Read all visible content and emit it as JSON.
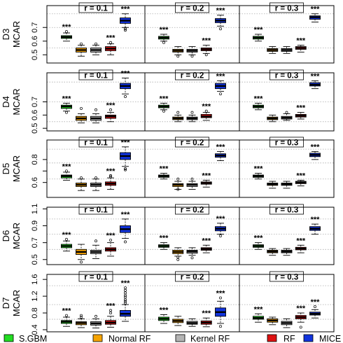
{
  "chart_data": {
    "type": "boxplot",
    "panel_titles": [
      "r = 0.1",
      "r = 0.2",
      "r = 0.3"
    ],
    "methods": [
      "S.GBM",
      "Normal RF",
      "Kernel RF",
      "RF",
      "MICE"
    ],
    "colors": {
      "S.GBM": "#22dd22",
      "Normal RF": "#f5a300",
      "Kernel RF": "#b4b4b4",
      "RF": "#dd1111",
      "MICE": "#1133dd"
    },
    "significance_label": "***",
    "rows": [
      {
        "label_top": "D3",
        "label_bottom": "MCAR",
        "ylim": [
          0.44,
          0.86
        ],
        "ticks": [
          0.5,
          0.6,
          0.7
        ],
        "tick_labels": [
          "0.5",
          "0.6",
          "0.7"
        ],
        "grid": [
          0.55,
          0.7,
          0.8
        ],
        "panels": [
          {
            "boxes": [
              [
                0.6,
                0.62,
                0.63,
                0.64,
                0.66
              ],
              [
                0.49,
                0.52,
                0.535,
                0.55,
                0.57
              ],
              [
                0.5,
                0.52,
                0.535,
                0.55,
                0.57
              ],
              [
                0.5,
                0.53,
                0.545,
                0.56,
                0.58
              ],
              [
                0.7,
                0.73,
                0.75,
                0.77,
                0.8
              ]
            ],
            "outliers": [
              [
                0.67
              ],
              [
                0.58
              ],
              [
                0.58
              ],
              [
                0.59
              ],
              [
                0.68,
                0.69
              ]
            ]
          },
          {
            "boxes": [
              [
                0.6,
                0.615,
                0.625,
                0.635,
                0.65
              ],
              [
                0.5,
                0.52,
                0.53,
                0.54,
                0.56
              ],
              [
                0.5,
                0.52,
                0.53,
                0.54,
                0.56
              ],
              [
                0.51,
                0.53,
                0.54,
                0.55,
                0.57
              ],
              [
                0.71,
                0.735,
                0.75,
                0.765,
                0.79
              ]
            ],
            "outliers": [
              [
                0.59
              ],
              [
                0.49
              ],
              [
                0.49
              ],
              [
                0.5
              ],
              [
                0.69
              ]
            ]
          },
          {
            "boxes": [
              [
                0.6,
                0.615,
                0.625,
                0.635,
                0.65
              ],
              [
                0.51,
                0.525,
                0.535,
                0.545,
                0.56
              ],
              [
                0.51,
                0.525,
                0.535,
                0.545,
                0.56
              ],
              [
                0.52,
                0.54,
                0.55,
                0.56,
                0.57
              ],
              [
                0.74,
                0.76,
                0.775,
                0.785,
                0.8
              ]
            ],
            "outliers": [
              [],
              [],
              [],
              [],
              []
            ]
          }
        ]
      },
      {
        "label_top": "D4",
        "label_bottom": "MCAR",
        "ylim": [
          0.48,
          0.92
        ],
        "ticks": [
          0.5,
          0.6,
          0.7
        ],
        "tick_labels": [
          "0.5",
          "0.6",
          "0.7"
        ],
        "grid": [
          0.55,
          0.7,
          0.85
        ],
        "panels": [
          {
            "boxes": [
              [
                0.63,
                0.65,
                0.665,
                0.675,
                0.69
              ],
              [
                0.54,
                0.56,
                0.575,
                0.59,
                0.61
              ],
              [
                0.54,
                0.56,
                0.575,
                0.59,
                0.61
              ],
              [
                0.55,
                0.575,
                0.59,
                0.6,
                0.62
              ],
              [
                0.76,
                0.8,
                0.82,
                0.84,
                0.88
              ]
            ],
            "outliers": [
              [
                0.62
              ],
              [
                0.65
              ],
              [
                0.64
              ],
              [
                0.64
              ],
              [
                0.74
              ]
            ]
          },
          {
            "boxes": [
              [
                0.64,
                0.655,
                0.665,
                0.675,
                0.69
              ],
              [
                0.55,
                0.565,
                0.575,
                0.585,
                0.6
              ],
              [
                0.55,
                0.565,
                0.575,
                0.585,
                0.6
              ],
              [
                0.56,
                0.58,
                0.59,
                0.605,
                0.62
              ],
              [
                0.78,
                0.8,
                0.82,
                0.84,
                0.86
              ]
            ],
            "outliers": [
              [
                0.63
              ],
              [
                0.62
              ],
              [
                0.62
              ],
              [
                0.63
              ],
              [
                0.76
              ]
            ]
          },
          {
            "boxes": [
              [
                0.64,
                0.655,
                0.665,
                0.675,
                0.69
              ],
              [
                0.55,
                0.565,
                0.575,
                0.585,
                0.6
              ],
              [
                0.56,
                0.57,
                0.58,
                0.59,
                0.61
              ],
              [
                0.57,
                0.585,
                0.595,
                0.605,
                0.62
              ],
              [
                0.8,
                0.82,
                0.83,
                0.845,
                0.86
              ]
            ],
            "outliers": [
              [],
              [],
              [
                0.62
              ],
              [],
              []
            ]
          }
        ]
      },
      {
        "label_top": "D5",
        "label_bottom": "MCAR",
        "ylim": [
          0.47,
          0.97
        ],
        "ticks": [
          0.6,
          0.7,
          0.8
        ],
        "tick_labels": [
          "0.6",
          "",
          "0.8"
        ],
        "grid": [
          0.63,
          0.77,
          0.89
        ],
        "panels": [
          {
            "boxes": [
              [
                0.62,
                0.64,
                0.655,
                0.665,
                0.69
              ],
              [
                0.53,
                0.565,
                0.58,
                0.595,
                0.63
              ],
              [
                0.53,
                0.565,
                0.58,
                0.595,
                0.63
              ],
              [
                0.54,
                0.575,
                0.59,
                0.605,
                0.64
              ],
              [
                0.74,
                0.8,
                0.83,
                0.86,
                0.91
              ]
            ],
            "outliers": [
              [
                0.7
              ],
              [
                0.64
              ],
              [
                0.64
              ],
              [
                0.65,
                0.66
              ],
              [
                0.71,
                0.72
              ]
            ]
          },
          {
            "boxes": [
              [
                0.63,
                0.645,
                0.655,
                0.665,
                0.68
              ],
              [
                0.54,
                0.565,
                0.58,
                0.59,
                0.61
              ],
              [
                0.54,
                0.565,
                0.58,
                0.59,
                0.61
              ],
              [
                0.56,
                0.585,
                0.595,
                0.605,
                0.62
              ],
              [
                0.79,
                0.82,
                0.835,
                0.85,
                0.87
              ]
            ],
            "outliers": [
              [],
              [
                0.63,
                0.54
              ],
              [
                0.63
              ],
              [],
              []
            ]
          },
          {
            "boxes": [
              [
                0.63,
                0.645,
                0.655,
                0.665,
                0.68
              ],
              [
                0.55,
                0.575,
                0.585,
                0.595,
                0.61
              ],
              [
                0.55,
                0.575,
                0.585,
                0.595,
                0.61
              ],
              [
                0.57,
                0.59,
                0.6,
                0.61,
                0.62
              ],
              [
                0.8,
                0.825,
                0.84,
                0.855,
                0.87
              ]
            ],
            "outliers": [
              [],
              [],
              [],
              [],
              []
            ]
          }
        ]
      },
      {
        "label_top": "D6",
        "label_bottom": "MCAR",
        "ylim": [
          0.44,
          1.12
        ],
        "ticks": [
          0.5,
          0.7,
          0.9,
          1.1
        ],
        "tick_labels": [
          "0.5",
          "0.7",
          "0.9",
          "1.1"
        ],
        "grid": [
          0.62,
          0.8,
          0.98
        ],
        "panels": [
          {
            "boxes": [
              [
                0.6,
                0.64,
                0.66,
                0.68,
                0.72
              ],
              [
                0.5,
                0.56,
                0.59,
                0.62,
                0.68
              ],
              [
                0.51,
                0.57,
                0.59,
                0.61,
                0.67
              ],
              [
                0.54,
                0.6,
                0.62,
                0.64,
                0.7
              ],
              [
                0.75,
                0.82,
                0.86,
                0.9,
                0.98
              ]
            ],
            "outliers": [
              [
                0.74
              ],
              [
                0.47
              ],
              [
                0.72
              ],
              [
                0.73
              ],
              [
                0.71
              ]
            ]
          },
          {
            "boxes": [
              [
                0.62,
                0.645,
                0.66,
                0.675,
                0.7
              ],
              [
                0.54,
                0.57,
                0.59,
                0.61,
                0.64
              ],
              [
                0.55,
                0.575,
                0.595,
                0.61,
                0.64
              ],
              [
                0.58,
                0.61,
                0.625,
                0.64,
                0.67
              ],
              [
                0.8,
                0.84,
                0.865,
                0.89,
                0.93
              ]
            ],
            "outliers": [
              [],
              [
                0.5,
                0.53
              ],
              [
                0.52
              ],
              [],
              [
                0.78
              ]
            ]
          },
          {
            "boxes": [
              [
                0.62,
                0.645,
                0.66,
                0.675,
                0.7
              ],
              [
                0.55,
                0.58,
                0.595,
                0.61,
                0.63
              ],
              [
                0.55,
                0.58,
                0.595,
                0.61,
                0.63
              ],
              [
                0.58,
                0.615,
                0.63,
                0.645,
                0.67
              ],
              [
                0.8,
                0.845,
                0.865,
                0.89,
                0.92
              ]
            ],
            "outliers": [
              [],
              [],
              [],
              [],
              []
            ]
          }
        ]
      },
      {
        "label_top": "D7",
        "label_bottom": "MCAR",
        "ylim": [
          0.35,
          1.72
        ],
        "ticks": [
          0.4,
          0.8,
          1.2,
          1.6
        ],
        "tick_labels": [
          "0.4",
          "0.8",
          "1.2",
          "1.6"
        ],
        "grid": [
          0.65,
          1.0,
          1.45
        ],
        "panels": [
          {
            "boxes": [
              [
                0.48,
                0.55,
                0.59,
                0.62,
                0.7
              ],
              [
                0.45,
                0.52,
                0.56,
                0.59,
                0.66
              ],
              [
                0.44,
                0.51,
                0.55,
                0.59,
                0.66
              ],
              [
                0.46,
                0.53,
                0.57,
                0.62,
                0.72
              ],
              [
                0.6,
                0.72,
                0.78,
                0.86,
                1.0
              ]
            ],
            "outliers": [
              [
                0.74
              ],
              [
                0.7,
                0.74
              ],
              [
                0.72
              ],
              [
                0.8,
                0.86
              ],
              [
                1.04,
                1.08,
                1.12,
                1.18,
                1.22,
                1.28,
                1.34,
                1.4
              ]
            ]
          },
          {
            "boxes": [
              [
                0.55,
                0.62,
                0.66,
                0.7,
                0.76
              ],
              [
                0.5,
                0.57,
                0.61,
                0.65,
                0.72
              ],
              [
                0.48,
                0.53,
                0.56,
                0.6,
                0.66
              ],
              [
                0.47,
                0.53,
                0.57,
                0.61,
                0.68
              ],
              [
                0.55,
                0.72,
                0.82,
                0.92,
                1.08
              ]
            ],
            "outliers": [
              [],
              [],
              [],
              [],
              [
                0.48,
                1.16
              ]
            ]
          },
          {
            "boxes": [
              [
                0.58,
                0.65,
                0.68,
                0.72,
                0.78
              ],
              [
                0.52,
                0.58,
                0.62,
                0.66,
                0.7
              ],
              [
                0.45,
                0.52,
                0.56,
                0.6,
                0.66
              ],
              [
                0.58,
                0.66,
                0.7,
                0.74,
                0.8
              ],
              [
                0.68,
                0.75,
                0.78,
                0.82,
                0.88
              ]
            ],
            "outliers": [
              [],
              [],
              [],
              [
                0.46
              ],
              [
                0.95
              ]
            ]
          }
        ]
      }
    ],
    "legend": {
      "position": "bottom",
      "entries": [
        "S.GBM",
        "Normal RF",
        "Kernel RF",
        "RF",
        "MICE"
      ]
    }
  }
}
